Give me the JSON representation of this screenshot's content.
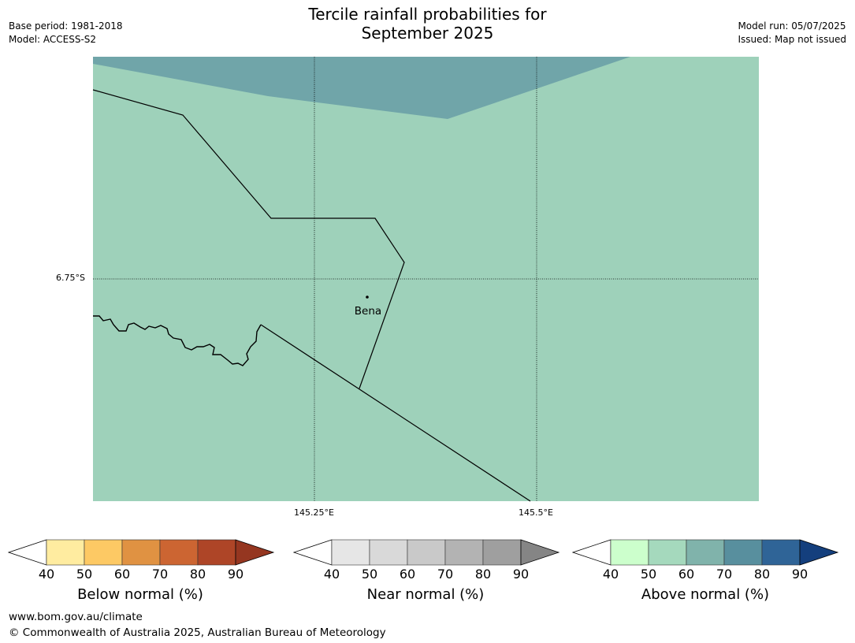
{
  "title": {
    "line1": "Tercile rainfall probabilities for",
    "line2": "September 2025"
  },
  "meta": {
    "base_period": "Base period: 1981-2018",
    "model": "Model: ACCESS-S2",
    "model_run": "Model run: 05/07/2025",
    "issued": "Issued: Map not issued"
  },
  "map": {
    "lat_label": "6.75°S",
    "lon_labels": [
      "145.25°E",
      "145.5°E"
    ],
    "town": "Bena",
    "colors": {
      "above_50_60": "#9ed1ba",
      "above_60_70": "#70a5a9",
      "border": "#000000"
    }
  },
  "legends": [
    {
      "label": "Below normal (%)",
      "ticks": [
        "40",
        "50",
        "60",
        "70",
        "80",
        "90"
      ],
      "colors": [
        "#ffeca0",
        "#fdc964",
        "#e09242",
        "#cc6532",
        "#ae4527",
        "#953620"
      ]
    },
    {
      "label": "Near normal (%)",
      "ticks": [
        "40",
        "50",
        "60",
        "70",
        "80",
        "90"
      ],
      "colors": [
        "#e6e6e6",
        "#d9d9d9",
        "#c9c9c9",
        "#b3b3b3",
        "#9f9f9f",
        "#858585"
      ]
    },
    {
      "label": "Above normal (%)",
      "ticks": [
        "40",
        "50",
        "60",
        "70",
        "80",
        "90"
      ],
      "colors": [
        "#ccffcc",
        "#a5d9bd",
        "#80b3ab",
        "#588f9e",
        "#2f6497",
        "#143f7d"
      ]
    }
  ],
  "footer": {
    "url": "www.bom.gov.au/climate",
    "copyright": "© Commonwealth of Australia 2025, Australian Bureau of Meteorology"
  }
}
